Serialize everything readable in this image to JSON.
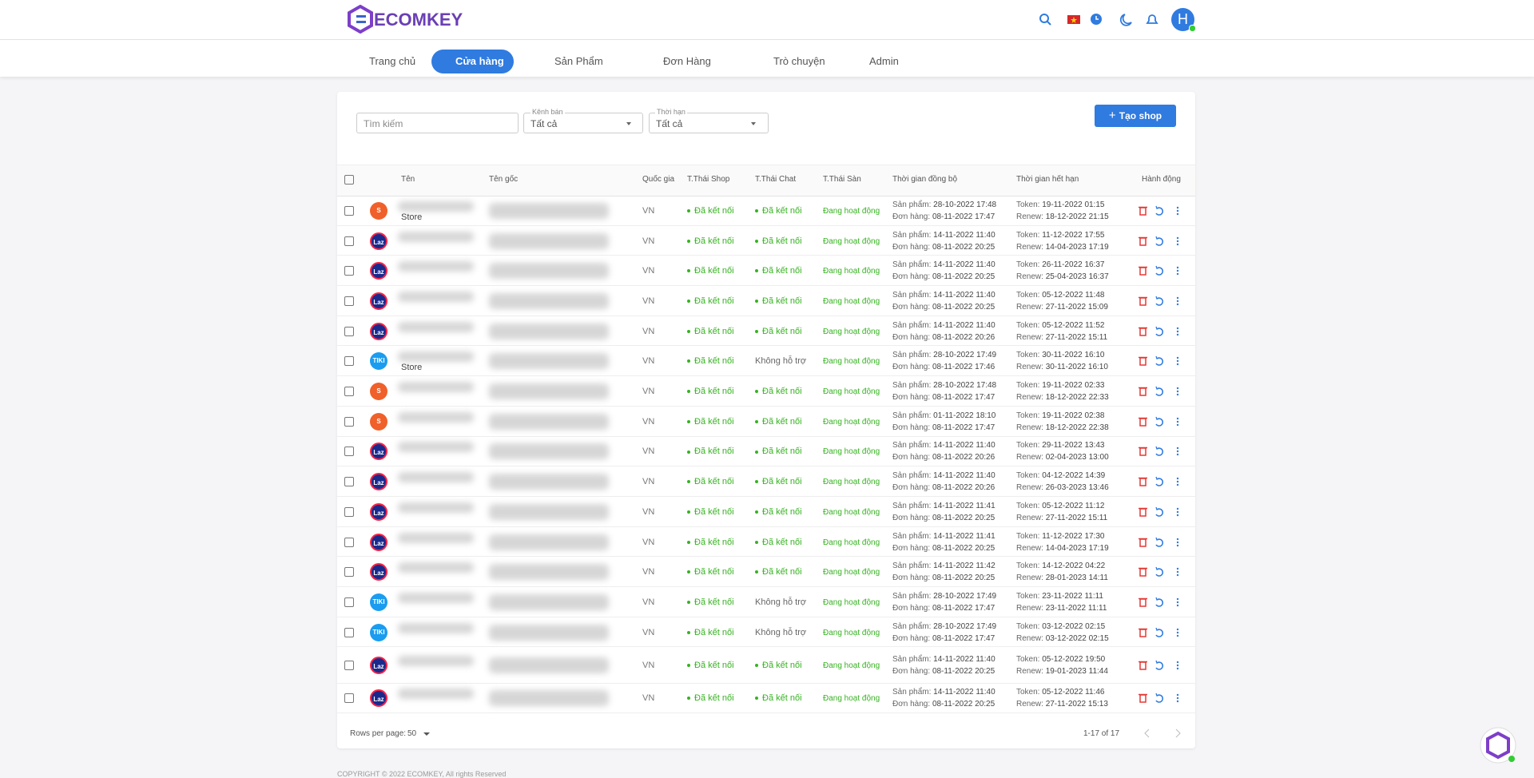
{
  "header": {
    "logo": "ECOMKEY",
    "avatar": "H"
  },
  "nav": [
    "Trang chủ",
    "Cửa hàng",
    "Sản Phẩm",
    "Đơn Hàng",
    "Trò chuyện",
    "Admin"
  ],
  "filters": {
    "search": "Tìm kiếm",
    "channel_label": "Kênh bán",
    "channel_value": "Tất cả",
    "term_label": "Thời hạn",
    "term_value": "Tất cả",
    "create": "Tạo shop"
  },
  "table": {
    "columns": [
      "Tên",
      "Tên gốc",
      "Quốc gia",
      "T.Thái Shop",
      "T.Thái Chat",
      "T.Thái Sàn",
      "Thời gian đồng bộ",
      "Thời gian hết hạn",
      "Hành động"
    ],
    "labels": {
      "product": "Sản phẩm:",
      "order": "Đơn hàng:",
      "token": "Token:",
      "renew": "Renew:"
    },
    "rows": [
      {
        "icon": "S",
        "name": "Store",
        "country": "VN",
        "shop": "Đã kết nối",
        "chat": "Đã kết nối",
        "san": "Đang hoạt động",
        "product": "28-10-2022 17:48",
        "order": "08-11-2022 17:47",
        "token": "19-11-2022 01:15",
        "renew": "18-12-2022 21:15"
      },
      {
        "icon": "Laz",
        "country": "VN",
        "shop": "Đã kết nối",
        "chat": "Đã kết nối",
        "san": "Đang hoạt động",
        "product": "14-11-2022 11:40",
        "order": "08-11-2022 20:25",
        "token": "11-12-2022 17:55",
        "renew": "14-04-2023 17:19"
      },
      {
        "icon": "Laz",
        "country": "VN",
        "shop": "Đã kết nối",
        "chat": "Đã kết nối",
        "san": "Đang hoạt động",
        "product": "14-11-2022 11:40",
        "order": "08-11-2022 20:25",
        "token": "26-11-2022 16:37",
        "renew": "25-04-2023 16:37"
      },
      {
        "icon": "Laz",
        "country": "VN",
        "shop": "Đã kết nối",
        "chat": "Đã kết nối",
        "san": "Đang hoạt động",
        "product": "14-11-2022 11:40",
        "order": "08-11-2022 20:25",
        "token": "05-12-2022 11:48",
        "renew": "27-11-2022 15:09"
      },
      {
        "icon": "Laz",
        "country": "VN",
        "shop": "Đã kết nối",
        "chat": "Đã kết nối",
        "san": "Đang hoạt động",
        "product": "14-11-2022 11:40",
        "order": "08-11-2022 20:26",
        "token": "05-12-2022 11:52",
        "renew": "27-11-2022 15:11"
      },
      {
        "icon": "TIKI",
        "name": "Store",
        "country": "VN",
        "shop": "Đã kết nối",
        "chat": "Không hỗ trợ",
        "san": "Đang hoạt động",
        "product": "28-10-2022 17:49",
        "order": "08-11-2022 17:46",
        "token": "30-11-2022 16:10",
        "renew": "30-11-2022 16:10"
      },
      {
        "icon": "S",
        "country": "VN",
        "shop": "Đã kết nối",
        "chat": "Đã kết nối",
        "san": "Đang hoạt động",
        "product": "28-10-2022 17:48",
        "order": "08-11-2022 17:47",
        "token": "19-11-2022 02:33",
        "renew": "18-12-2022 22:33"
      },
      {
        "icon": "S",
        "country": "VN",
        "shop": "Đã kết nối",
        "chat": "Đã kết nối",
        "san": "Đang hoạt động",
        "product": "01-11-2022 18:10",
        "order": "08-11-2022 17:47",
        "token": "19-11-2022 02:38",
        "renew": "18-12-2022 22:38"
      },
      {
        "icon": "Laz",
        "country": "VN",
        "shop": "Đã kết nối",
        "chat": "Đã kết nối",
        "san": "Đang hoạt động",
        "product": "14-11-2022 11:40",
        "order": "08-11-2022 20:26",
        "token": "29-11-2022 13:43",
        "renew": "02-04-2023 13:00"
      },
      {
        "icon": "Laz",
        "country": "VN",
        "shop": "Đã kết nối",
        "chat": "Đã kết nối",
        "san": "Đang hoạt động",
        "product": "14-11-2022 11:40",
        "order": "08-11-2022 20:26",
        "token": "04-12-2022 14:39",
        "renew": "26-03-2023 13:46"
      },
      {
        "icon": "Laz",
        "country": "VN",
        "shop": "Đã kết nối",
        "chat": "Đã kết nối",
        "san": "Đang hoạt động",
        "product": "14-11-2022 11:41",
        "order": "08-11-2022 20:25",
        "token": "05-12-2022 11:12",
        "renew": "27-11-2022 15:11"
      },
      {
        "icon": "Laz",
        "country": "VN",
        "shop": "Đã kết nối",
        "chat": "Đã kết nối",
        "san": "Đang hoạt động",
        "product": "14-11-2022 11:41",
        "order": "08-11-2022 20:25",
        "token": "11-12-2022 17:30",
        "renew": "14-04-2023 17:19"
      },
      {
        "icon": "Laz",
        "country": "VN",
        "shop": "Đã kết nối",
        "chat": "Đã kết nối",
        "san": "Đang hoạt động",
        "product": "14-11-2022 11:42",
        "order": "08-11-2022 20:25",
        "token": "14-12-2022 04:22",
        "renew": "28-01-2023 14:11"
      },
      {
        "icon": "TIKI",
        "country": "VN",
        "shop": "Đã kết nối",
        "chat": "Không hỗ trợ",
        "san": "Đang hoạt động",
        "product": "28-10-2022 17:49",
        "order": "08-11-2022 17:47",
        "token": "23-11-2022 11:11",
        "renew": "23-11-2022 11:11"
      },
      {
        "icon": "TIKI",
        "country": "VN",
        "shop": "Đã kết nối",
        "chat": "Không hỗ trợ",
        "san": "Đang hoạt động",
        "product": "28-10-2022 17:49",
        "order": "08-11-2022 17:47",
        "token": "03-12-2022 02:15",
        "renew": "03-12-2022 02:15"
      },
      {
        "icon": "Laz",
        "country": "VN",
        "shop": "Đã kết nối",
        "chat": "Đã kết nối",
        "san": "Đang hoạt động",
        "product": "14-11-2022 11:40",
        "order": "08-11-2022 20:25",
        "token": "05-12-2022 19:50",
        "renew": "19-01-2023 11:44"
      },
      {
        "icon": "Laz",
        "country": "VN",
        "shop": "Đã kết nối",
        "chat": "Đã kết nối",
        "san": "Đang hoạt động",
        "product": "14-11-2022 11:40",
        "order": "08-11-2022 20:25",
        "token": "05-12-2022 11:46",
        "renew": "27-11-2022 15:13"
      }
    ]
  },
  "pagination": {
    "rows_label": "Rows per page:",
    "rows_value": "50",
    "range": "1-17 of 17"
  },
  "footer": "COPYRIGHT © 2022 ECOMKEY, All rights Reserved"
}
